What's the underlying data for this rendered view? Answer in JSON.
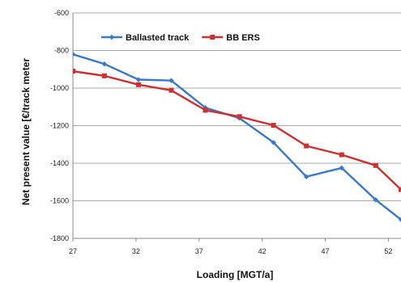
{
  "chart_data": {
    "type": "line",
    "title": "",
    "xlabel": "Loading [MGT/a]",
    "ylabel": "Net present value [€/track meter",
    "xlim": [
      27,
      53
    ],
    "ylim": [
      -1800,
      -600
    ],
    "x_ticks": [
      27,
      32,
      37,
      42,
      47,
      52
    ],
    "y_ticks": [
      -600,
      -800,
      -1000,
      -1200,
      -1400,
      -1600,
      -1800
    ],
    "x_tick_labels": [
      "27",
      "32",
      "37",
      "42",
      "47",
      "52"
    ],
    "y_tick_labels": [
      "-600",
      "-800",
      "-1000",
      "-1200",
      "-1400",
      "-1600",
      "-1800"
    ],
    "grid": "horizontal",
    "legend_position": "top-left",
    "series": [
      {
        "name": "Ballasted track",
        "color": "#3a78c8",
        "marker": "diamond",
        "x": [
          27,
          29.5,
          32.2,
          34.8,
          37.5,
          40.2,
          42.9,
          45.5,
          48.3,
          51,
          53
        ],
        "y": [
          -820,
          -872,
          -955,
          -960,
          -1105,
          -1160,
          -1290,
          -1472,
          -1425,
          -1595,
          -1700
        ]
      },
      {
        "name": "BB ERS",
        "color": "#cc3030",
        "marker": "square",
        "x": [
          27,
          29.5,
          32.2,
          34.8,
          37.5,
          40.2,
          42.9,
          45.5,
          48.3,
          51,
          53
        ],
        "y": [
          -910,
          -935,
          -982,
          -1012,
          -1118,
          -1152,
          -1198,
          -1308,
          -1355,
          -1412,
          -1540
        ]
      }
    ]
  }
}
